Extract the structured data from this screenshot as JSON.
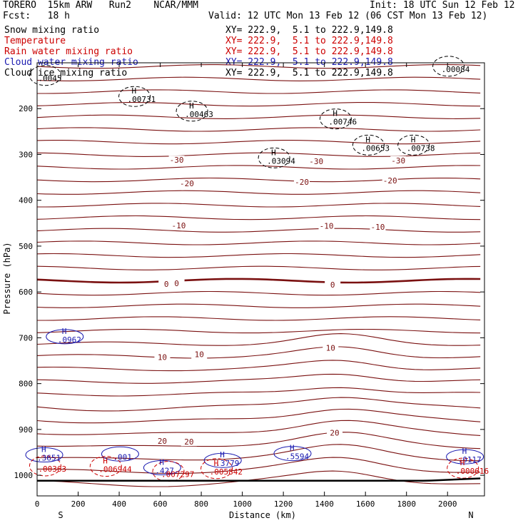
{
  "header": {
    "model": "TORERO  15km ARW   Run2    NCAR/MMM",
    "init": "Init: 18 UTC Sun 12 Feb 12",
    "fcst": "Fcst:   18 h",
    "valid": "Valid: 12 UTC Mon 13 Feb 12 (06 CST Mon 13 Feb 12)"
  },
  "legend": [
    {
      "label": "Snow mixing ratio",
      "xy": "XY= 222.9,  5.1 to 222.9,149.8",
      "color": "#000000"
    },
    {
      "label": "Temperature",
      "xy": "XY= 222.9,  5.1 to 222.9,149.8",
      "color": "#cc0000"
    },
    {
      "label": "Rain water mixing ratio",
      "xy": "XY= 222.9,  5.1 to 222.9,149.8",
      "color": "#cc0000"
    },
    {
      "label": "Cloud water mixing ratio",
      "xy": "XY= 222.9,  5.1 to 222.9,149.8",
      "color": "#1a1ab0"
    },
    {
      "label": "Cloud ice mixing ratio",
      "xy": "XY= 222.9,  5.1 to 222.9,149.8",
      "color": "#000000"
    }
  ],
  "chart_data": {
    "type": "contour-cross-section",
    "xlabel": "Distance (km)",
    "ylabel": "Pressure (hPa)",
    "xlim": [
      0,
      2180
    ],
    "ylim": [
      100,
      1045
    ],
    "x_ticks": [
      0,
      200,
      400,
      600,
      800,
      1000,
      1200,
      1400,
      1600,
      1800,
      2000
    ],
    "y_ticks": [
      200,
      300,
      400,
      500,
      600,
      700,
      800,
      900,
      1000
    ],
    "endpoint_labels": {
      "left": "S",
      "right": "N"
    },
    "temperature_labels": [
      {
        "text": "-30",
        "x": 680,
        "p": 312
      },
      {
        "text": "-30",
        "x": 1360,
        "p": 315
      },
      {
        "text": "-30",
        "x": 1760,
        "p": 313
      },
      {
        "text": "-20",
        "x": 730,
        "p": 363
      },
      {
        "text": "-20",
        "x": 1290,
        "p": 360
      },
      {
        "text": "-20",
        "x": 1720,
        "p": 357
      },
      {
        "text": "-10",
        "x": 690,
        "p": 455
      },
      {
        "text": "-10",
        "x": 1410,
        "p": 456
      },
      {
        "text": "-10",
        "x": 1660,
        "p": 458
      },
      {
        "text": "0",
        "x": 630,
        "p": 583
      },
      {
        "text": "0",
        "x": 680,
        "p": 581
      },
      {
        "text": "0",
        "x": 1440,
        "p": 584
      },
      {
        "text": "10",
        "x": 610,
        "p": 742
      },
      {
        "text": "10",
        "x": 790,
        "p": 736
      },
      {
        "text": "10",
        "x": 1430,
        "p": 722
      },
      {
        "text": "20",
        "x": 610,
        "p": 925
      },
      {
        "text": "20",
        "x": 740,
        "p": 927
      },
      {
        "text": "20",
        "x": 1450,
        "p": 907
      }
    ],
    "maxima": [
      {
        "text": ".00084",
        "x": 1970,
        "p": 120,
        "series": "Snow mixing ratio",
        "h": false
      },
      {
        "text": ".0045",
        "x": 5,
        "p": 140,
        "series": "Cloud ice mixing ratio",
        "h": false
      },
      {
        "text": ".00731",
        "x": 440,
        "p": 186,
        "series": "Cloud ice mixing ratio",
        "h": true
      },
      {
        "text": ".00463",
        "x": 720,
        "p": 218,
        "series": "Cloud ice mixing ratio",
        "h": true
      },
      {
        "text": ".00746",
        "x": 1420,
        "p": 235,
        "series": "Cloud ice mixing ratio",
        "h": true
      },
      {
        "text": ".00653",
        "x": 1580,
        "p": 292,
        "series": "Cloud ice mixing ratio",
        "h": true
      },
      {
        "text": ".00738",
        "x": 1800,
        "p": 292,
        "series": "Cloud ice mixing ratio",
        "h": true
      },
      {
        "text": ".03094",
        "x": 1120,
        "p": 320,
        "series": "Snow mixing ratio",
        "h": true
      },
      {
        "text": ".0962",
        "x": 100,
        "p": 710,
        "series": "Cloud water mixing ratio",
        "h": true
      },
      {
        "text": ".001",
        "x": 370,
        "p": 966,
        "series": "Cloud water mixing ratio",
        "h": false
      },
      {
        "text": ".5594",
        "x": 1210,
        "p": 965,
        "series": "Cloud water mixing ratio",
        "h": true
      },
      {
        "text": ".3779",
        "x": 870,
        "p": 980,
        "series": "Cloud water mixing ratio",
        "h": true
      },
      {
        "text": ".3651",
        "x": 0,
        "p": 968,
        "series": "Cloud water mixing ratio",
        "h": true
      },
      {
        "text": ".427",
        "x": 575,
        "p": 996,
        "series": "Cloud water mixing ratio",
        "h": true
      },
      {
        "text": ".0117",
        "x": 2050,
        "p": 972,
        "series": "Cloud water mixing ratio",
        "h": true
      },
      {
        "text": ".00363",
        "x": 5,
        "p": 992,
        "series": "Rain water mixing ratio",
        "h": false
      },
      {
        "text": ".006944",
        "x": 300,
        "p": 993,
        "series": "Rain water mixing ratio",
        "h": true
      },
      {
        "text": ".007297",
        "x": 605,
        "p": 1004,
        "series": "Rain water mixing ratio",
        "h": false
      },
      {
        "text": ".005842",
        "x": 840,
        "p": 998,
        "series": "Rain water mixing ratio",
        "h": true
      },
      {
        "text": ".000616",
        "x": 2040,
        "p": 997,
        "series": "Rain water mixing ratio",
        "h": true
      }
    ]
  }
}
